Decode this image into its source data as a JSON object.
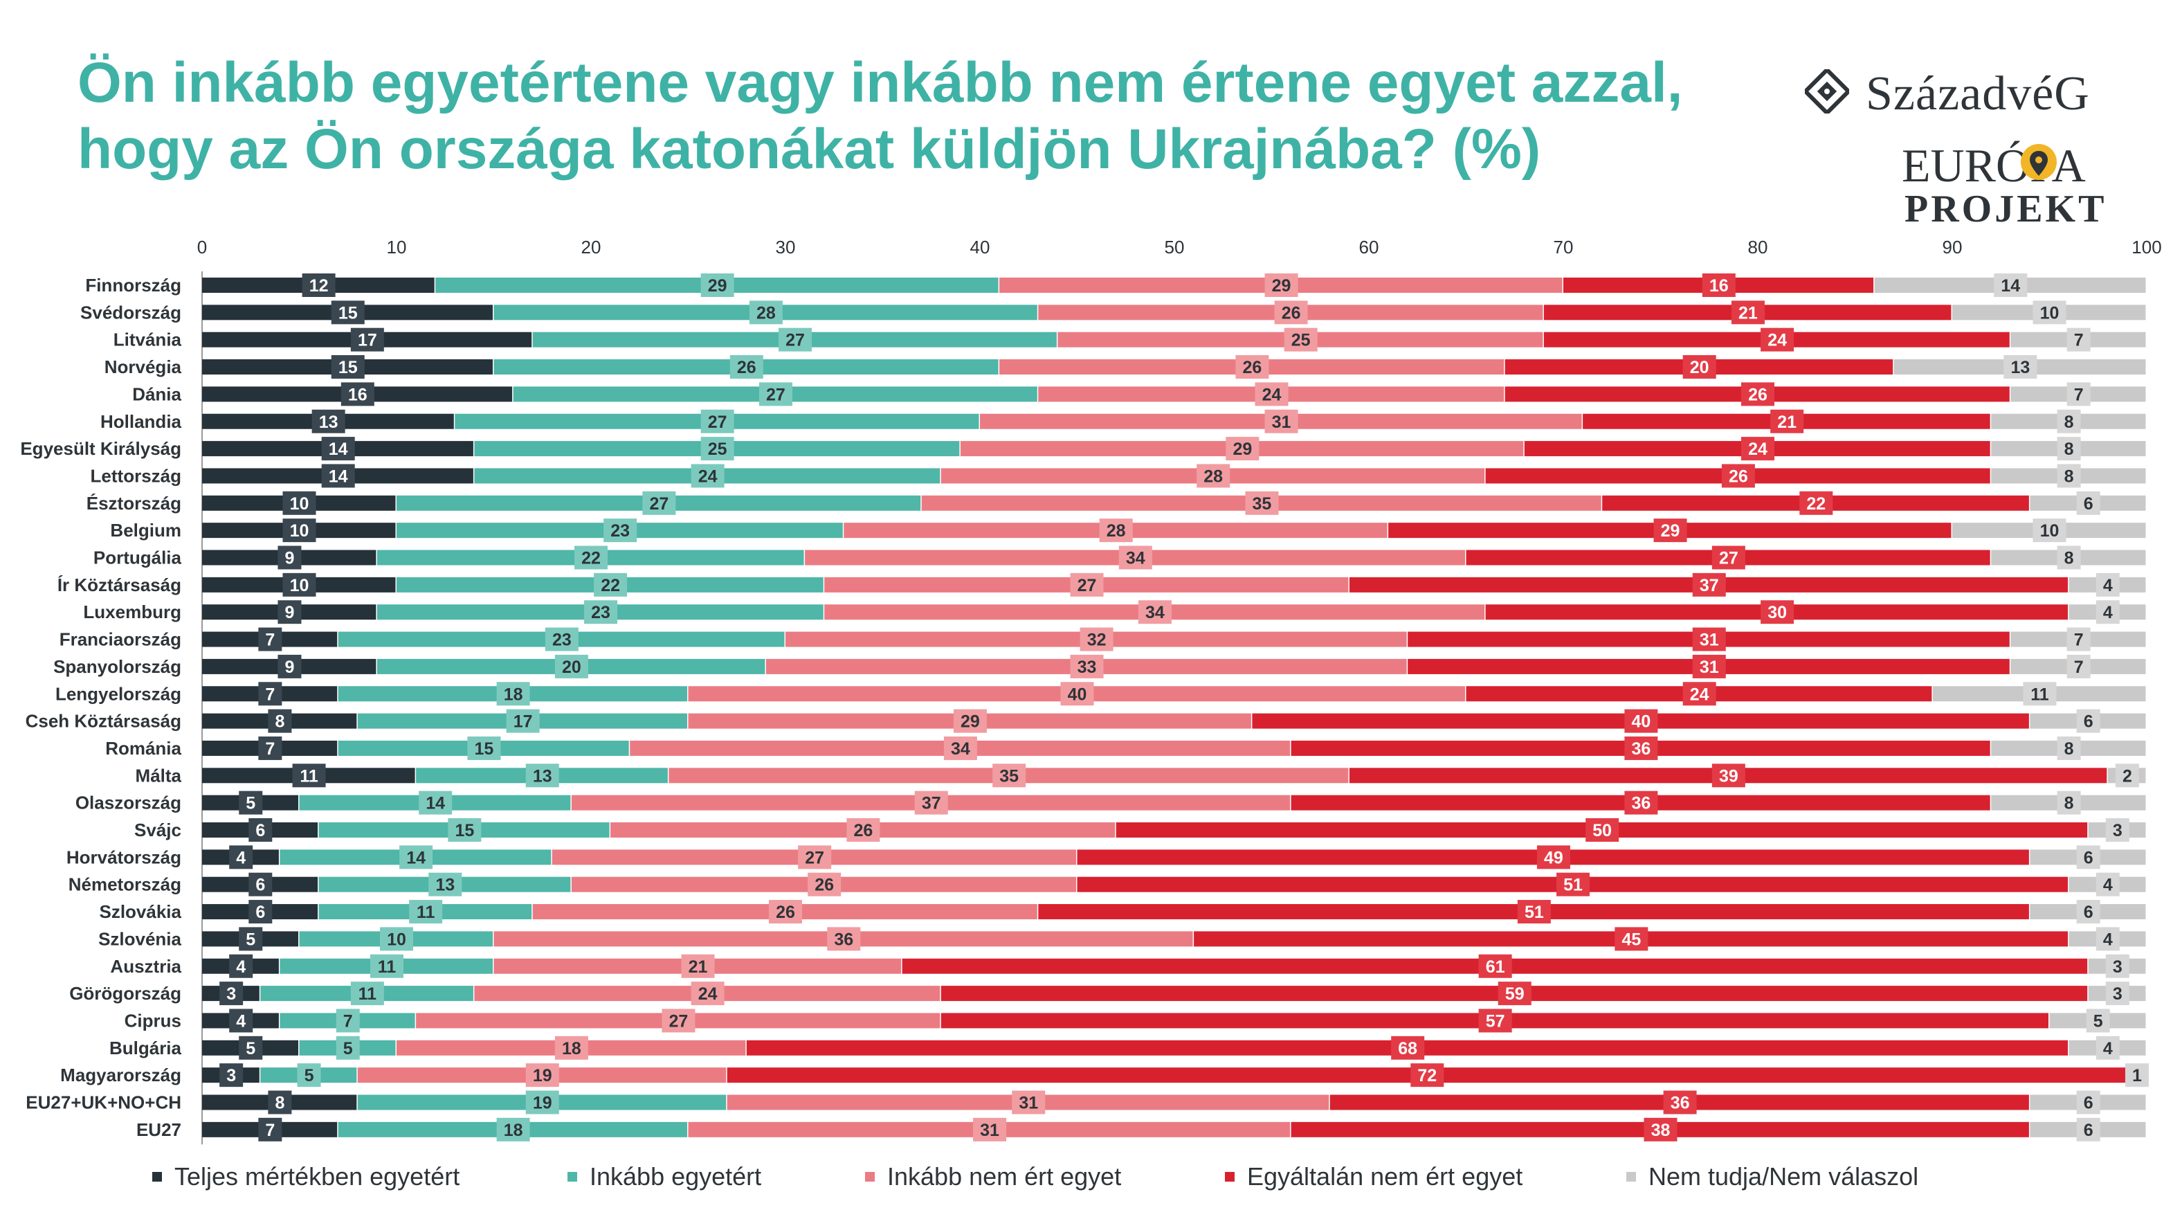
{
  "title_lines": [
    "Ön inkább egyetértene vagy inkább nem értene egyet azzal,",
    "hogy az Ön országa katonákat küldjön Ukrajnába? (%)"
  ],
  "logos": {
    "szazadveg": "SzázadvéG",
    "europa_line1": "EURÓPA",
    "europa_line2": "PROJEKT"
  },
  "chart_data": {
    "type": "bar",
    "orientation": "horizontal",
    "stacked": true,
    "xlim": [
      0,
      100
    ],
    "xticks": [
      0,
      10,
      20,
      30,
      40,
      50,
      60,
      70,
      80,
      90,
      100
    ],
    "legend_position": "bottom",
    "grid": false,
    "categories": [
      "Finnország",
      "Svédország",
      "Litvánia",
      "Norvégia",
      "Dánia",
      "Hollandia",
      "Egyesült Királyság",
      "Lettország",
      "Észtország",
      "Belgium",
      "Portugália",
      "Ír Köztársaság",
      "Luxemburg",
      "Franciaország",
      "Spanyolország",
      "Lengyelország",
      "Cseh Köztársaság",
      "Románia",
      "Málta",
      "Olaszország",
      "Svájc",
      "Horvátország",
      "Németország",
      "Szlovákia",
      "Szlovénia",
      "Ausztria",
      "Görögország",
      "Ciprus",
      "Bulgária",
      "Magyarország",
      "EU27+UK+NO+CH",
      "EU27"
    ],
    "series": [
      {
        "name": "Teljes mértékben egyetért",
        "color": "#26323a",
        "values": [
          12,
          15,
          17,
          15,
          16,
          13,
          14,
          14,
          10,
          10,
          9,
          10,
          9,
          7,
          9,
          7,
          8,
          7,
          11,
          5,
          6,
          4,
          6,
          6,
          5,
          4,
          3,
          4,
          5,
          3,
          8,
          7
        ]
      },
      {
        "name": "Inkább egyetért",
        "color": "#4fb6a8",
        "values": [
          29,
          28,
          27,
          26,
          27,
          27,
          25,
          24,
          27,
          23,
          22,
          22,
          23,
          23,
          20,
          18,
          17,
          15,
          13,
          14,
          15,
          14,
          13,
          11,
          10,
          11,
          11,
          7,
          5,
          5,
          19,
          18
        ]
      },
      {
        "name": "Inkább nem ért egyet",
        "color": "#eb7b83",
        "values": [
          29,
          26,
          25,
          26,
          24,
          31,
          29,
          28,
          35,
          28,
          34,
          27,
          34,
          32,
          33,
          40,
          29,
          34,
          35,
          37,
          26,
          27,
          26,
          26,
          36,
          21,
          24,
          27,
          18,
          19,
          31,
          31
        ]
      },
      {
        "name": "Egyáltalán nem ért egyet",
        "color": "#d8212f",
        "values": [
          16,
          21,
          24,
          20,
          26,
          21,
          24,
          26,
          22,
          29,
          27,
          37,
          30,
          31,
          31,
          24,
          40,
          36,
          39,
          36,
          50,
          49,
          51,
          51,
          45,
          61,
          59,
          57,
          68,
          72,
          36,
          38
        ]
      },
      {
        "name": "Nem tudja/Nem válaszol",
        "color": "#c9c9c9",
        "values": [
          14,
          10,
          7,
          13,
          7,
          8,
          8,
          8,
          6,
          10,
          8,
          4,
          4,
          7,
          7,
          11,
          6,
          8,
          2,
          8,
          3,
          6,
          4,
          6,
          4,
          3,
          3,
          5,
          4,
          1,
          6,
          6
        ]
      }
    ]
  },
  "styling": {
    "label_box_dark": "#3b4750",
    "label_box_teal": "#7ccabe",
    "label_box_pink": "#f19ca1",
    "label_box_red": "#e33b46",
    "label_box_grey": "#d6d6d6",
    "title_color": "#3fb2a6",
    "text_color": "#2e3438",
    "accent_yellow": "#f2b527"
  }
}
